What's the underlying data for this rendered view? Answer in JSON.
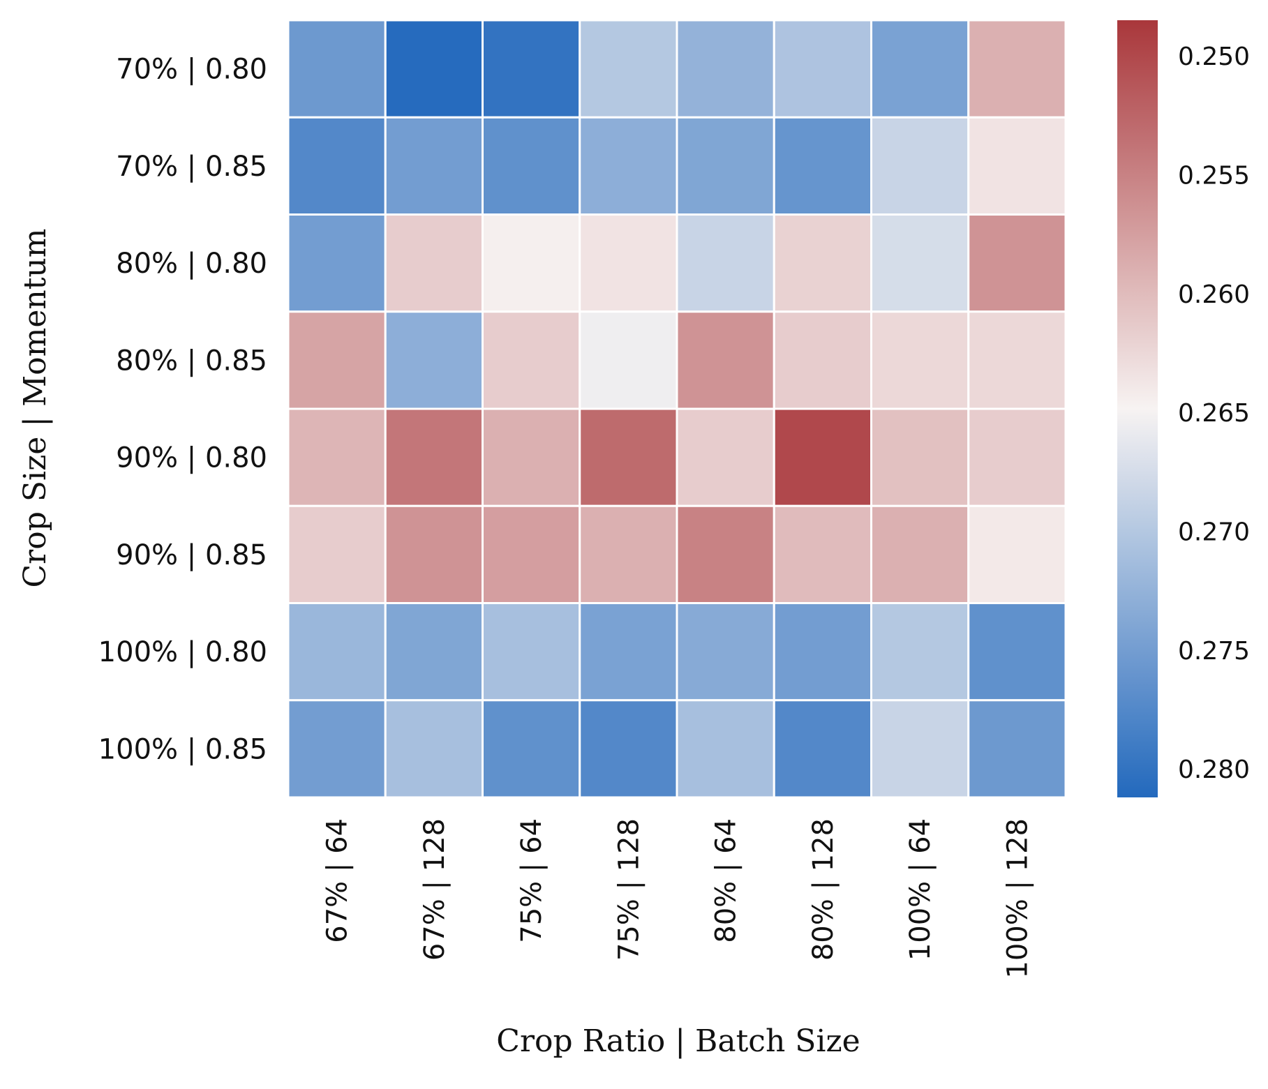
{
  "chart_data": {
    "type": "heatmap",
    "title": "",
    "xlabel": "Crop Ratio | Batch Size",
    "ylabel": "Crop Size | Momentum",
    "x_categories": [
      "67% | 64",
      "67% | 128",
      "75% | 64",
      "75% | 128",
      "80% | 64",
      "80% | 128",
      "100% | 64",
      "100% | 128"
    ],
    "y_categories": [
      "70% | 0.80",
      "70% | 0.85",
      "80% | 0.80",
      "80% | 0.85",
      "90% | 0.80",
      "90% | 0.85",
      "100% | 0.80",
      "100% | 0.85"
    ],
    "values": [
      [
        0.2755,
        0.281,
        0.28,
        0.27,
        0.2725,
        0.2705,
        0.2745,
        0.259
      ],
      [
        0.2775,
        0.275,
        0.2765,
        0.273,
        0.274,
        0.276,
        0.2685,
        0.2635
      ],
      [
        0.275,
        0.2615,
        0.2645,
        0.2635,
        0.2685,
        0.262,
        0.2675,
        0.2565
      ],
      [
        0.258,
        0.273,
        0.2615,
        0.2655,
        0.2565,
        0.2615,
        0.2625,
        0.2625
      ],
      [
        0.2595,
        0.254,
        0.259,
        0.253,
        0.2615,
        0.25,
        0.2605,
        0.2615
      ],
      [
        0.2615,
        0.2565,
        0.2575,
        0.259,
        0.255,
        0.26,
        0.259,
        0.264
      ],
      [
        0.272,
        0.274,
        0.271,
        0.2745,
        0.2735,
        0.275,
        0.27,
        0.2765
      ],
      [
        0.275,
        0.271,
        0.2765,
        0.2775,
        0.271,
        0.2775,
        0.2685,
        0.2755
      ]
    ],
    "colorbar": {
      "ticks": [
        "0.250",
        "0.255",
        "0.260",
        "0.265",
        "0.270",
        "0.275",
        "0.280"
      ],
      "tick_values": [
        0.25,
        0.255,
        0.26,
        0.265,
        0.27,
        0.275,
        0.28
      ],
      "range": [
        0.2485,
        0.2812
      ],
      "reversed": true
    },
    "colors": {
      "low_end": "#2369bd",
      "mid": "#f7f3f2",
      "high_end": "#a9373b",
      "cell_border": "#ffffff"
    }
  }
}
